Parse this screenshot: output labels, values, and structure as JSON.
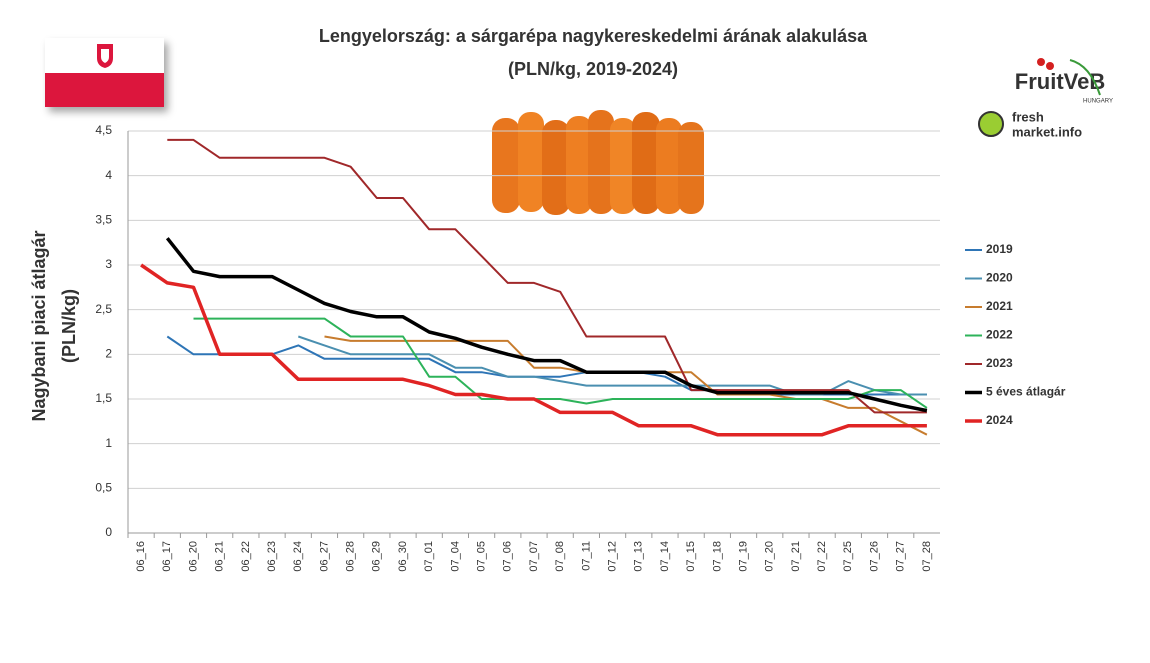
{
  "chart_data": {
    "type": "line",
    "title": "Lengyelország: a sárgarépa nagykereskedelmi árának alakulása",
    "subtitle": "(PLN/kg, 2019-2024)",
    "y_label": [
      "Nagybani piaci átlagár",
      "(PLN/kg)"
    ],
    "categories": [
      "06_16",
      "06_17",
      "06_20",
      "06_21",
      "06_22",
      "06_23",
      "06_24",
      "06_27",
      "06_28",
      "06_29",
      "06_30",
      "07_01",
      "07_04",
      "07_05",
      "07_06",
      "07_07",
      "07_08",
      "07_11",
      "07_12",
      "07_13",
      "07_14",
      "07_15",
      "07_18",
      "07_19",
      "07_20",
      "07_21",
      "07_22",
      "07_25",
      "07_26",
      "07_27",
      "07_28"
    ],
    "series": [
      {
        "name": "2019",
        "color": "#2e75b6",
        "line_width": 2,
        "values": [
          null,
          2.2,
          2.0,
          2.0,
          2.0,
          2.0,
          2.1,
          1.95,
          1.95,
          1.95,
          1.95,
          1.95,
          1.8,
          1.8,
          1.75,
          1.75,
          1.75,
          1.8,
          1.8,
          1.8,
          1.75,
          1.6,
          1.6,
          1.55,
          1.55,
          1.55,
          1.55,
          1.55,
          1.55,
          1.55,
          1.55
        ]
      },
      {
        "name": "2020",
        "color": "#4a8fb0",
        "line_width": 2,
        "values": [
          null,
          null,
          null,
          null,
          null,
          null,
          2.2,
          2.1,
          2.0,
          2.0,
          2.0,
          2.0,
          1.85,
          1.85,
          1.75,
          1.75,
          1.7,
          1.65,
          1.65,
          1.65,
          1.65,
          1.65,
          1.65,
          1.65,
          1.65,
          1.55,
          1.55,
          1.7,
          1.6,
          1.55,
          1.55
        ]
      },
      {
        "name": "2021",
        "color": "#c77c2e",
        "line_width": 2,
        "values": [
          null,
          null,
          null,
          null,
          null,
          null,
          null,
          2.2,
          2.15,
          2.15,
          2.15,
          2.15,
          2.15,
          2.15,
          2.15,
          1.85,
          1.85,
          1.8,
          1.8,
          1.8,
          1.8,
          1.8,
          1.55,
          1.55,
          1.55,
          1.5,
          1.5,
          1.4,
          1.4,
          1.25,
          1.1
        ]
      },
      {
        "name": "2022",
        "color": "#2db35a",
        "line_width": 2,
        "values": [
          null,
          null,
          2.4,
          2.4,
          2.4,
          2.4,
          2.4,
          2.4,
          2.2,
          2.2,
          2.2,
          1.75,
          1.75,
          1.5,
          1.5,
          1.5,
          1.5,
          1.45,
          1.5,
          1.5,
          1.5,
          1.5,
          1.5,
          1.5,
          1.5,
          1.5,
          1.5,
          1.5,
          1.6,
          1.6,
          1.4
        ]
      },
      {
        "name": "2023",
        "color": "#a0282a",
        "line_width": 2,
        "values": [
          null,
          4.4,
          4.4,
          4.2,
          4.2,
          4.2,
          4.2,
          4.2,
          4.1,
          3.75,
          3.75,
          3.4,
          3.4,
          3.1,
          2.8,
          2.8,
          2.7,
          2.2,
          2.2,
          2.2,
          2.2,
          1.6,
          1.6,
          1.6,
          1.6,
          1.6,
          1.6,
          1.6,
          1.35,
          1.35,
          1.35
        ]
      },
      {
        "name": "5 éves átlagár",
        "color": "#000000",
        "line_width": 3.5,
        "values": [
          null,
          3.3,
          2.93,
          2.87,
          2.87,
          2.87,
          2.72,
          2.57,
          2.48,
          2.42,
          2.42,
          2.25,
          2.18,
          2.08,
          2.0,
          1.93,
          1.93,
          1.8,
          1.8,
          1.8,
          1.8,
          1.65,
          1.57,
          1.57,
          1.57,
          1.57,
          1.57,
          1.57,
          1.5,
          1.43,
          1.37
        ]
      },
      {
        "name": "2024",
        "color": "#e02424",
        "line_width": 3.5,
        "values": [
          3.0,
          2.8,
          2.75,
          2.0,
          2.0,
          2.0,
          1.72,
          1.72,
          1.72,
          1.72,
          1.72,
          1.65,
          1.55,
          1.55,
          1.5,
          1.5,
          1.35,
          1.35,
          1.35,
          1.2,
          1.2,
          1.2,
          1.1,
          1.1,
          1.1,
          1.1,
          1.1,
          1.2,
          1.2,
          1.2,
          1.2
        ]
      }
    ],
    "ylim": [
      0,
      4.5
    ],
    "yticks": [
      0,
      {
        "value": 0.5,
        "label": "0,5"
      },
      1,
      {
        "value": 1.5,
        "label": "1,5"
      },
      2,
      {
        "value": 2.5,
        "label": "2,5"
      },
      3,
      {
        "value": 3.5,
        "label": "3,5"
      },
      4,
      {
        "value": 4.5,
        "label": "4,5"
      }
    ],
    "grid": true,
    "legend": "right"
  },
  "logos": {
    "fruitveb": "FruitVeB",
    "hungary": "HUNGARY",
    "fresh": "fresh",
    "market": "market.info"
  }
}
